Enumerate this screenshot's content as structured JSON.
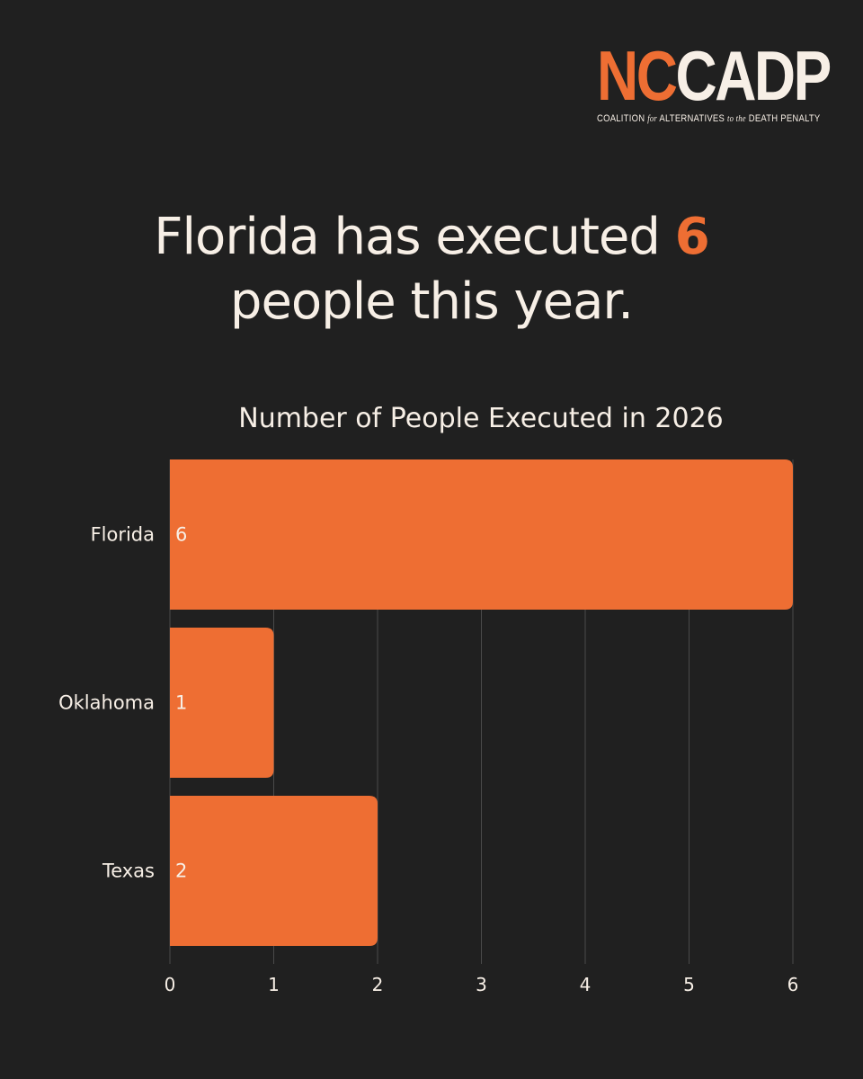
{
  "logo": {
    "mark_nc": "NC",
    "mark_cadp": "CADP",
    "sub_1": "COALITION",
    "sub_2": "for",
    "sub_3": "ALTERNATIVES",
    "sub_4": "to the",
    "sub_5": "DEATH PENALTY"
  },
  "headline": {
    "before": "Florida has executed",
    "number": "6",
    "after": "people this year."
  },
  "colors": {
    "background": "#202020",
    "accent": "#ee6e33",
    "text": "#f7efe6",
    "grid": "#4a4a4a"
  },
  "chart_data": {
    "type": "bar",
    "orientation": "horizontal",
    "title": "Number of People Executed in 2026",
    "categories": [
      "Florida",
      "Oklahoma",
      "Texas"
    ],
    "values": [
      6,
      1,
      2
    ],
    "xlim": [
      0,
      6
    ],
    "xticks": [
      "0",
      "1",
      "2",
      "3",
      "4",
      "5",
      "6"
    ],
    "grid": "vertical",
    "legend": "none"
  }
}
